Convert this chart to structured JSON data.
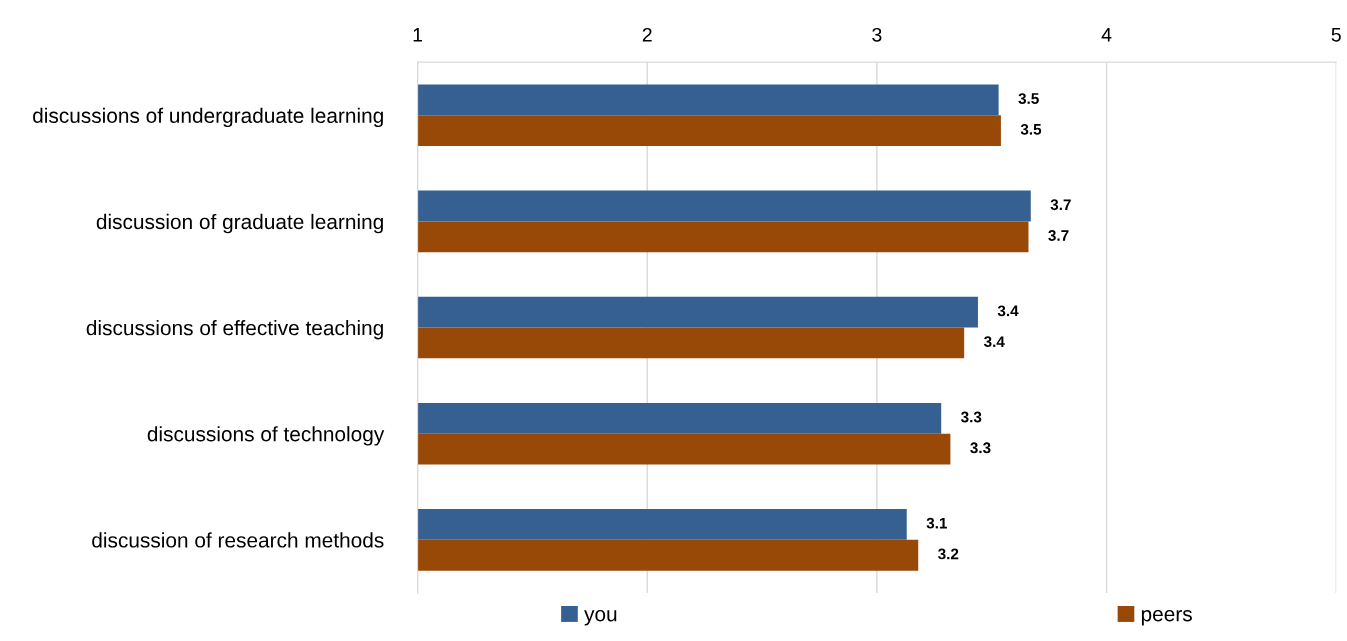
{
  "chart_data": {
    "type": "bar",
    "orientation": "horizontal",
    "categories": [
      "discussions of undergraduate learning",
      "discussion of graduate learning",
      "discussions of effective teaching",
      "discussions of technology",
      "discussion of research methods"
    ],
    "series": [
      {
        "name": "you",
        "color": "#376092",
        "values": [
          3.53,
          3.67,
          3.44,
          3.28,
          3.13
        ],
        "value_labels": [
          "3.5",
          "3.7",
          "3.4",
          "3.3",
          "3.1"
        ]
      },
      {
        "name": "peers",
        "color": "#984807",
        "values": [
          3.54,
          3.66,
          3.38,
          3.32,
          3.18
        ],
        "value_labels": [
          "3.5",
          "3.7",
          "3.4",
          "3.3",
          "3.2"
        ]
      }
    ],
    "xlim": [
      1,
      5
    ],
    "xticks": [
      1,
      2,
      3,
      4,
      5
    ],
    "grid": "x",
    "legend": "bottom"
  }
}
